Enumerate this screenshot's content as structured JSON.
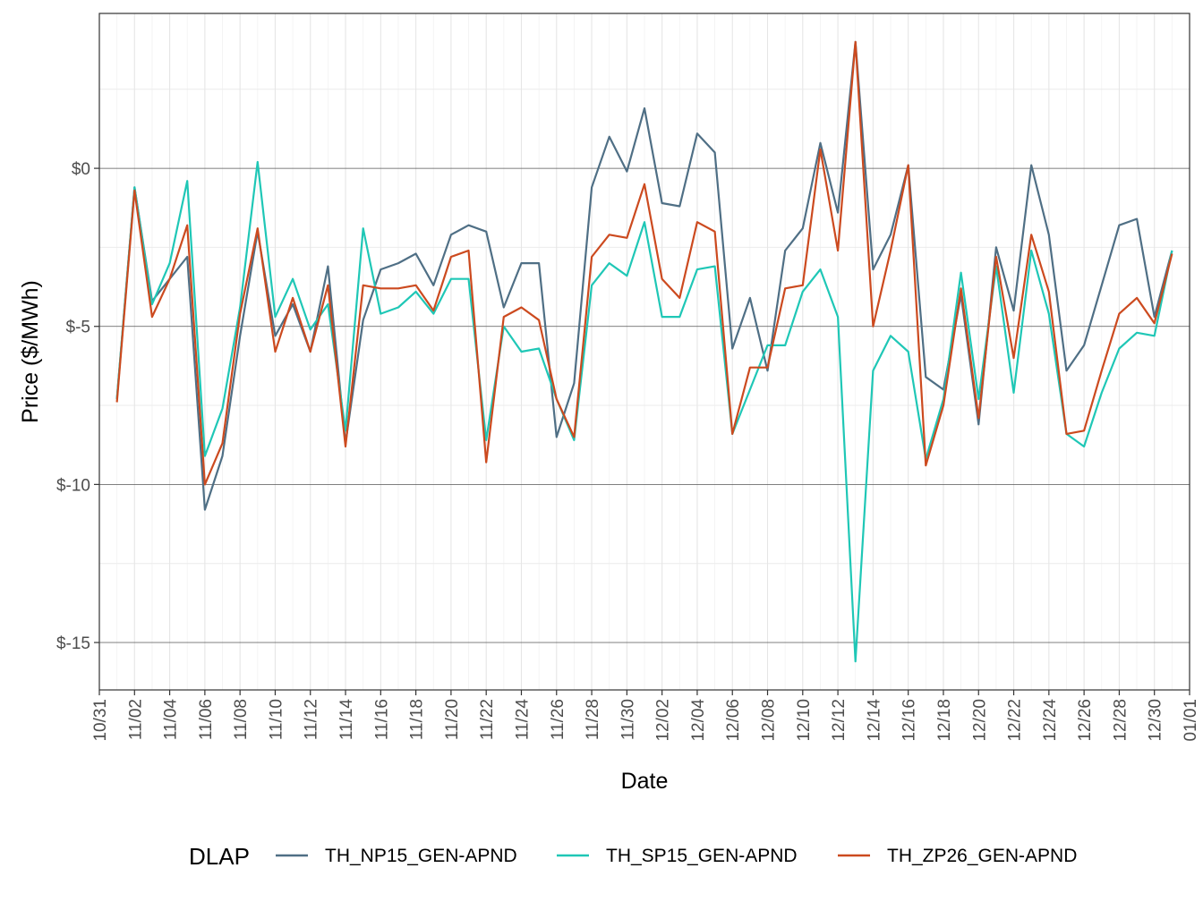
{
  "chart_data": {
    "type": "line",
    "title": "",
    "xlabel": "Date",
    "ylabel": "Price ($/MWh)",
    "x_start": "2024-10-31",
    "xlim": [
      "10/31",
      "01/01"
    ],
    "x_ticks": [
      "10/31",
      "11/02",
      "11/04",
      "11/06",
      "11/08",
      "11/10",
      "11/12",
      "11/14",
      "11/16",
      "11/18",
      "11/20",
      "11/22",
      "11/24",
      "11/26",
      "11/28",
      "11/30",
      "12/02",
      "12/04",
      "12/06",
      "12/08",
      "12/10",
      "12/12",
      "12/14",
      "12/16",
      "12/18",
      "12/20",
      "12/22",
      "12/24",
      "12/26",
      "12/28",
      "12/30",
      "01/01"
    ],
    "ylim": [
      -16.5,
      4.9
    ],
    "y_ticks": [
      0,
      -5,
      -10,
      -15
    ],
    "y_tick_labels": [
      "$0",
      "$-5",
      "$-10",
      "$-15"
    ],
    "grid": true,
    "legend": {
      "title": "DLAP",
      "position": "bottom"
    },
    "x": [
      "11/01",
      "11/02",
      "11/03",
      "11/04",
      "11/05",
      "11/06",
      "11/07",
      "11/08",
      "11/09",
      "11/10",
      "11/11",
      "11/12",
      "11/13",
      "11/14",
      "11/15",
      "11/16",
      "11/17",
      "11/18",
      "11/19",
      "11/20",
      "11/21",
      "11/22",
      "11/23",
      "11/24",
      "11/25",
      "11/26",
      "11/27",
      "11/28",
      "11/29",
      "11/30",
      "12/01",
      "12/02",
      "12/03",
      "12/04",
      "12/05",
      "12/06",
      "12/07",
      "12/08",
      "12/09",
      "12/10",
      "12/11",
      "12/12",
      "12/13",
      "12/14",
      "12/15",
      "12/16",
      "12/17",
      "12/18",
      "12/19",
      "12/20",
      "12/21",
      "12/22",
      "12/23",
      "12/24",
      "12/25",
      "12/26",
      "12/27",
      "12/28",
      "12/29",
      "12/30",
      "12/31",
      "01/01"
    ],
    "series": [
      {
        "name": "TH_NP15_GEN-APND",
        "color": "#4f6f85",
        "values": [
          -7.3,
          -0.6,
          -4.2,
          -3.5,
          -2.8,
          -10.8,
          -9.1,
          -5.3,
          -2.0,
          -5.3,
          -4.3,
          -5.8,
          -3.1,
          -8.7,
          -4.8,
          -3.2,
          -3.0,
          -2.7,
          -3.7,
          -2.1,
          -1.8,
          -2.0,
          -4.4,
          -3.0,
          -3.0,
          -8.5,
          -6.8,
          -0.6,
          1.0,
          -0.1,
          1.9,
          -1.1,
          -1.2,
          1.1,
          0.5,
          -5.7,
          -4.1,
          -6.4,
          -2.6,
          -1.9,
          0.8,
          -1.4,
          4.0,
          -3.2,
          -2.1,
          0.1,
          -6.6,
          -7.0,
          -4.0,
          -8.1,
          -2.5,
          -4.5,
          0.1,
          -2.1,
          -6.4,
          -5.6,
          -3.7,
          -1.8,
          -1.6,
          -4.7,
          -2.6,
          null
        ]
      },
      {
        "name": "TH_SP15_GEN-APND",
        "color": "#1fc7b6",
        "values": [
          -7.3,
          -0.6,
          -4.3,
          -3.0,
          -0.4,
          -9.1,
          -7.6,
          -4.4,
          0.2,
          -4.7,
          -3.5,
          -5.1,
          -4.3,
          -8.3,
          -1.9,
          -4.6,
          -4.4,
          -3.9,
          -4.6,
          -3.5,
          -3.5,
          -8.6,
          -5.0,
          -5.8,
          -5.7,
          -7.3,
          -8.6,
          -3.7,
          -3.0,
          -3.4,
          -1.7,
          -4.7,
          -4.7,
          -3.2,
          -3.1,
          -8.4,
          -7.0,
          -5.6,
          -5.6,
          -3.9,
          -3.2,
          -4.7,
          -15.6,
          -6.4,
          -5.3,
          -5.8,
          -9.2,
          -7.3,
          -3.3,
          -7.3,
          -3.1,
          -7.1,
          -2.6,
          -4.6,
          -8.4,
          -8.8,
          -7.1,
          -5.7,
          -5.2,
          -5.3,
          -2.6,
          null
        ]
      },
      {
        "name": "TH_ZP26_GEN-APND",
        "color": "#cc4a1f",
        "values": [
          -7.4,
          -0.7,
          -4.7,
          -3.5,
          -1.8,
          -10.0,
          -8.7,
          -4.6,
          -1.9,
          -5.8,
          -4.1,
          -5.8,
          -3.7,
          -8.8,
          -3.7,
          -3.8,
          -3.8,
          -3.7,
          -4.5,
          -2.8,
          -2.6,
          -9.3,
          -4.7,
          -4.4,
          -4.8,
          -7.3,
          -8.5,
          -2.8,
          -2.1,
          -2.2,
          -0.5,
          -3.5,
          -4.1,
          -1.7,
          -2.0,
          -8.4,
          -6.3,
          -6.3,
          -3.8,
          -3.7,
          0.6,
          -2.6,
          4.0,
          -5.0,
          -2.6,
          0.1,
          -9.4,
          -7.5,
          -3.8,
          -7.9,
          -2.8,
          -6.0,
          -2.1,
          -3.9,
          -8.4,
          -8.3,
          -6.4,
          -4.6,
          -4.1,
          -4.9,
          -2.7,
          null
        ]
      }
    ]
  }
}
